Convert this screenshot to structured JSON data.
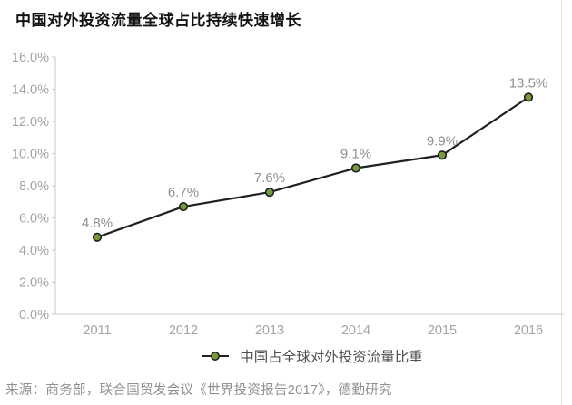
{
  "title": "中国对外投资流量全球占比持续快速增长",
  "source": "来源：商务部，联合国贸发会议《世界投资报告2017》，德勤研究",
  "colors": {
    "title_text": "#141414",
    "axis_line": "#c8c8c8",
    "axis_label": "#a3a3a3",
    "data_label": "#8f8f8f",
    "series_line": "#212121",
    "marker_fill": "#78993c",
    "marker_stroke": "#1e1e1e",
    "legend_text": "#4f4f4f",
    "source_text": "#909090",
    "page_edge": "#e0e0e0"
  },
  "chart_data": {
    "type": "line",
    "title": "中国对外投资流量全球占比持续快速增长",
    "categories": [
      "2011",
      "2012",
      "2013",
      "2014",
      "2015",
      "2016"
    ],
    "series": [
      {
        "name": "中国占全球对外投资流量比重",
        "values": [
          4.8,
          6.7,
          7.6,
          9.1,
          9.9,
          13.5
        ]
      }
    ],
    "data_labels": [
      "4.8%",
      "6.7%",
      "7.6%",
      "9.1%",
      "9.9%",
      "13.5%"
    ],
    "xlabel": "",
    "ylabel": "",
    "ylim": [
      0,
      16
    ],
    "ytick_step": 2,
    "ytick_labels": [
      "0.0%",
      "2.0%",
      "4.0%",
      "6.0%",
      "8.0%",
      "10.0%",
      "12.0%",
      "14.0%",
      "16.0%"
    ],
    "grid": false,
    "legend_position": "bottom",
    "markers": true
  }
}
